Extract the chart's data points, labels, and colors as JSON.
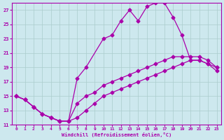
{
  "xlabel": "Windchill (Refroidissement éolien,°C)",
  "background_color": "#cde8ee",
  "line_color": "#aa00aa",
  "grid_color": "#aacccc",
  "xlim": [
    -0.5,
    23.5
  ],
  "ylim": [
    11,
    28
  ],
  "yticks": [
    11,
    13,
    15,
    17,
    19,
    21,
    23,
    25,
    27
  ],
  "xticks": [
    0,
    1,
    2,
    3,
    4,
    5,
    6,
    7,
    8,
    9,
    10,
    11,
    12,
    13,
    14,
    15,
    16,
    17,
    18,
    19,
    20,
    21,
    22,
    23
  ],
  "series1_x": [
    0,
    1,
    2,
    3,
    4,
    5,
    6,
    7,
    8,
    10,
    11,
    12,
    13,
    14,
    15,
    16,
    17,
    18,
    19,
    20,
    21,
    22,
    23
  ],
  "series1_y": [
    15,
    14.5,
    13.5,
    12.5,
    12,
    11.5,
    11.5,
    17.5,
    19,
    23,
    23.5,
    25.5,
    27,
    25.5,
    27.5,
    28,
    28,
    26,
    23.5,
    20,
    20,
    19.5,
    18.5
  ],
  "series2_x": [
    0,
    1,
    2,
    3,
    4,
    5,
    6,
    7,
    8,
    9,
    10,
    11,
    12,
    13,
    14,
    15,
    16,
    17,
    18,
    19,
    20,
    21,
    22,
    23
  ],
  "series2_y": [
    15,
    14.5,
    13.5,
    12.5,
    12,
    11.5,
    11.5,
    14,
    15,
    15.5,
    16.5,
    17,
    17.5,
    18,
    18.5,
    19,
    19.5,
    20,
    20.5,
    20.5,
    20.5,
    20.5,
    20,
    19
  ],
  "series3_x": [
    0,
    1,
    2,
    3,
    4,
    5,
    6,
    7,
    8,
    9,
    10,
    11,
    12,
    13,
    14,
    15,
    16,
    17,
    18,
    19,
    20,
    21,
    22,
    23
  ],
  "series3_y": [
    15,
    14.5,
    13.5,
    12.5,
    12,
    11.5,
    11.5,
    12,
    13,
    14,
    15,
    15.5,
    16,
    16.5,
    17,
    17.5,
    18,
    18.5,
    19,
    19.5,
    20,
    20,
    19.5,
    19
  ]
}
